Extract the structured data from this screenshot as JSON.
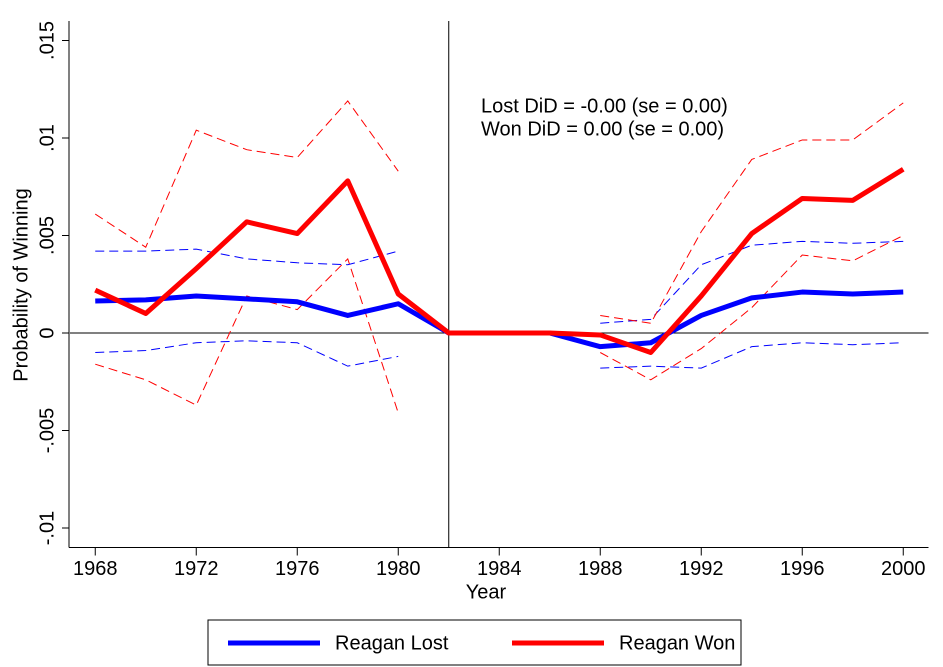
{
  "chart_data": {
    "type": "line",
    "x": [
      1968,
      1970,
      1972,
      1974,
      1976,
      1978,
      1980,
      1982,
      1984,
      1986,
      1988,
      1990,
      1992,
      1994,
      1996,
      1998,
      2000
    ],
    "series": [
      {
        "name": "Reagan Lost",
        "color": "#0000ff",
        "values": [
          0.00164,
          0.0017,
          0.0019,
          0.00175,
          0.0016,
          0.0009,
          0.0015,
          0,
          0,
          0,
          -0.0007,
          -0.0005,
          0.0009,
          0.0018,
          0.0021,
          0.002,
          0.0021
        ]
      },
      {
        "name": "Reagan Won",
        "color": "#ff0000",
        "values": [
          0.0022,
          0.001,
          0.0033,
          0.0057,
          0.0051,
          0.0078,
          0.002,
          0,
          0,
          0,
          -0.0001,
          -0.001,
          0.0019,
          0.0051,
          0.0069,
          0.0068,
          0.0084
        ]
      }
    ],
    "bands": [
      {
        "color": "#0000ff",
        "upper": [
          0.0042,
          0.0042,
          0.0043,
          0.0038,
          0.0036,
          0.0035,
          0.0042,
          null,
          null,
          null,
          0.0005,
          0.0007,
          0.0035,
          0.0045,
          0.0047,
          0.0046,
          0.0047
        ],
        "lower": [
          -0.001,
          -0.0009,
          -0.0005,
          -0.0004,
          -0.0005,
          -0.0017,
          -0.0012,
          null,
          null,
          null,
          -0.0018,
          -0.0017,
          -0.0018,
          -0.0007,
          -0.0005,
          -0.0006,
          -0.0005
        ]
      },
      {
        "color": "#ff0000",
        "upper": [
          0.0061,
          0.0044,
          0.0104,
          0.0094,
          0.009,
          0.0119,
          0.0083,
          null,
          null,
          null,
          0.0009,
          0.0005,
          0.0052,
          0.0089,
          0.0099,
          0.0099,
          0.0118
        ],
        "lower": [
          -0.0016,
          -0.0024,
          -0.0037,
          0.0019,
          0.0012,
          0.0038,
          -0.0041,
          null,
          null,
          null,
          -0.001,
          -0.0024,
          -0.0008,
          0.0013,
          0.004,
          0.0037,
          0.005
        ]
      }
    ],
    "xlabel": "Year",
    "ylabel": "Probability of Winning",
    "xlim": [
      1967,
      2001
    ],
    "ylim": [
      -0.011,
      0.016
    ],
    "xticks": [
      1968,
      1972,
      1976,
      1980,
      1984,
      1988,
      1992,
      1996,
      2000
    ],
    "yticks": [
      {
        "value": -0.01,
        "label": "-.01"
      },
      {
        "value": -0.005,
        "label": "-.005"
      },
      0,
      {
        "value": 0.005,
        "label": ".005"
      },
      {
        "value": 0.01,
        "label": ".01"
      },
      {
        "value": 0.015,
        "label": ".015"
      }
    ],
    "reference_x": 1982,
    "reference_y": 0,
    "annotations": [
      "Lost DiD = -0.00 (se = 0.00)",
      "Won DiD = 0.00 (se = 0.00)"
    ],
    "legend": "bottom"
  }
}
